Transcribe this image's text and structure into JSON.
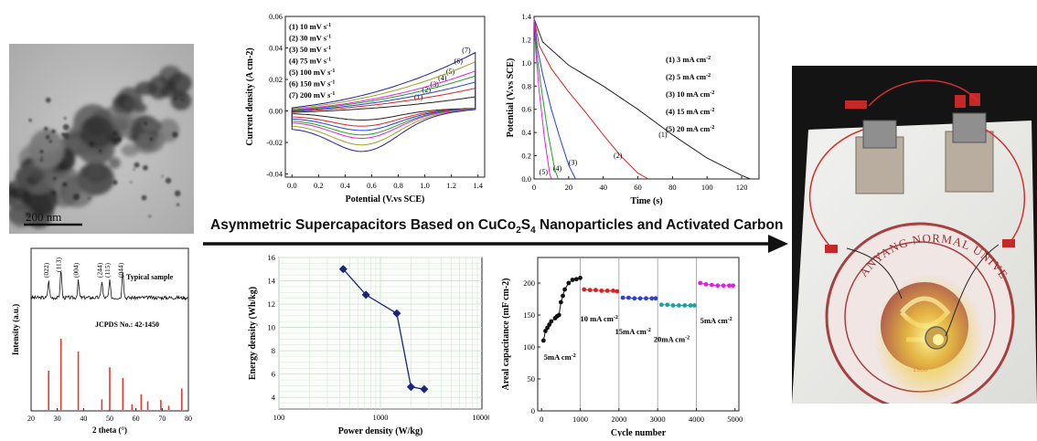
{
  "banner": {
    "title_prefix": "Asymmetric Supercapacitors Based on CuCo",
    "sub1": "2",
    "mid": "S",
    "sub2": "4",
    "title_suffix": " Nanoparticles and Activated Carbon"
  },
  "tem": {
    "scale_label": "200 nm"
  },
  "photo": {
    "seal_text": "ANYANG NORMAL UNIVERSITY",
    "seal_year": "1908"
  },
  "colors": {
    "arrow": "#111111",
    "grid": "#cfe3cf"
  },
  "chart_data": [
    {
      "id": "xrd",
      "type": "line",
      "xlabel": "2 theta (°)",
      "ylabel": "Intensity (a.u.)",
      "xlim": [
        20,
        80
      ],
      "x_ticks": [
        20,
        30,
        40,
        50,
        60,
        70,
        80
      ],
      "legend": [
        "Typical sample",
        "JCPDS No.: 42-1450"
      ],
      "peaks": [
        {
          "label": "(022)",
          "x": 26.7
        },
        {
          "label": "(113)",
          "x": 31.4
        },
        {
          "label": "(004)",
          "x": 38.0
        },
        {
          "label": "(244)",
          "x": 47.0
        },
        {
          "label": "(115)",
          "x": 50.0
        },
        {
          "label": "(044)",
          "x": 55.0
        }
      ],
      "ref_lines": [
        {
          "x": 26.7,
          "h": 0.55
        },
        {
          "x": 31.4,
          "h": 1.0
        },
        {
          "x": 38.0,
          "h": 0.82
        },
        {
          "x": 47.0,
          "h": 0.15
        },
        {
          "x": 50.0,
          "h": 0.6
        },
        {
          "x": 55.0,
          "h": 0.45
        },
        {
          "x": 58.5,
          "h": 0.08
        },
        {
          "x": 62.0,
          "h": 0.22
        },
        {
          "x": 64.5,
          "h": 0.12
        },
        {
          "x": 69.5,
          "h": 0.14
        },
        {
          "x": 72.5,
          "h": 0.06
        },
        {
          "x": 77.5,
          "h": 0.3
        }
      ]
    },
    {
      "id": "cv",
      "type": "line",
      "xlabel": "Potential (V.vs SCE)",
      "ylabel": "Current density (A cm",
      "ylabel_sup": "-2",
      "ylabel_end": ")",
      "xlim": [
        -0.05,
        1.45
      ],
      "ylim": [
        -0.042,
        0.06
      ],
      "x_ticks": [
        0.0,
        0.2,
        0.4,
        0.6,
        0.8,
        1.0,
        1.2,
        1.4
      ],
      "y_ticks": [
        -0.04,
        -0.02,
        0.0,
        0.02,
        0.04,
        0.06
      ],
      "y_tick_labels": [
        "-0.04",
        "-0.02",
        "0.00",
        "0.02",
        "0.04",
        "0.06"
      ],
      "legend_unit": "s",
      "legend_unit_sup": "-1",
      "series": [
        {
          "name": "(1) 10 mV",
          "tag": "(1)",
          "scale": 0.28,
          "color": "#222222"
        },
        {
          "name": "(2) 30 mV",
          "tag": "(2)",
          "scale": 0.42,
          "color": "#e02020"
        },
        {
          "name": "(3) 50 mV",
          "tag": "(3)",
          "scale": 0.52,
          "color": "#2040e0"
        },
        {
          "name": "(4) 75 mV",
          "tag": "(4)",
          "scale": 0.62,
          "color": "#20a020"
        },
        {
          "name": "(5) 100 mV",
          "tag": "(5)",
          "scale": 0.7,
          "color": "#e020e0"
        },
        {
          "name": "(6) 150 mV",
          "tag": "(6)",
          "scale": 0.85,
          "color": "#a0a020"
        },
        {
          "name": "(7) 200 mV",
          "tag": "(7)",
          "scale": 1.0,
          "color": "#2020a0"
        }
      ]
    },
    {
      "id": "gcd",
      "type": "line",
      "xlabel": "Time (s)",
      "ylabel": "Potential (V.vs SCE)",
      "xlim": [
        0,
        130
      ],
      "ylim": [
        0,
        1.4
      ],
      "x_ticks": [
        0,
        20,
        40,
        60,
        80,
        100,
        120
      ],
      "y_ticks": [
        0.0,
        0.2,
        0.4,
        0.6,
        0.8,
        1.0,
        1.2,
        1.4
      ],
      "y_tick_labels": [
        "0.0",
        "0.2",
        "0.4",
        "0.6",
        "0.8",
        "1.0",
        "1.2",
        "1.4"
      ],
      "legend_unit": "mA cm",
      "legend_unit_sup": "-2",
      "series": [
        {
          "name": "(1) 3",
          "tag": "(1)",
          "color": "#222222",
          "x": [
            0,
            5,
            20,
            40,
            60,
            80,
            100,
            120,
            125
          ],
          "y": [
            1.38,
            1.18,
            0.98,
            0.8,
            0.6,
            0.38,
            0.18,
            0.03,
            0.0
          ]
        },
        {
          "name": "(2) 5",
          "tag": "(2)",
          "color": "#e02020",
          "x": [
            0,
            3,
            10,
            20,
            30,
            40,
            50,
            60,
            66
          ],
          "y": [
            1.38,
            1.15,
            0.95,
            0.75,
            0.57,
            0.38,
            0.2,
            0.05,
            0.0
          ]
        },
        {
          "name": "(3) 10",
          "tag": "(3)",
          "color": "#2040e0",
          "x": [
            0,
            2,
            5,
            10,
            15,
            20,
            24
          ],
          "y": [
            1.38,
            1.12,
            0.9,
            0.6,
            0.35,
            0.12,
            0.0
          ]
        },
        {
          "name": "(4) 15",
          "tag": "(4)",
          "color": "#20a020",
          "x": [
            0,
            1.5,
            4,
            8,
            12,
            14
          ],
          "y": [
            1.38,
            1.1,
            0.8,
            0.4,
            0.08,
            0.0
          ]
        },
        {
          "name": "(5) 20",
          "tag": "(5)",
          "color": "#e020e0",
          "x": [
            0,
            1,
            3,
            6,
            9,
            10
          ],
          "y": [
            1.38,
            1.1,
            0.75,
            0.35,
            0.05,
            0.0
          ]
        }
      ]
    },
    {
      "id": "ragone",
      "type": "line",
      "xlabel": "Power density (W/kg)",
      "ylabel": "Energy density (Wh/kg)",
      "xscale": "log",
      "xlim": [
        100,
        10000
      ],
      "ylim": [
        3,
        16
      ],
      "x_ticks": [
        100,
        1000,
        10000
      ],
      "y_ticks": [
        4,
        6,
        8,
        10,
        12,
        14,
        16
      ],
      "grid": true,
      "color": "#1a237e",
      "x": [
        430,
        720,
        1450,
        2000,
        2700
      ],
      "y": [
        15.0,
        12.8,
        11.2,
        4.9,
        4.7
      ]
    },
    {
      "id": "cycle",
      "type": "scatter",
      "xlabel": "Cycle number",
      "ylabel": "Areal capacitance (mF cm",
      "ylabel_sup": "-2",
      "ylabel_end": ")",
      "xlim": [
        -100,
        5100
      ],
      "ylim": [
        0,
        240
      ],
      "x_ticks": [
        0,
        1000,
        2000,
        3000,
        4000,
        5000
      ],
      "y_ticks": [
        0,
        50,
        100,
        150,
        200
      ],
      "dividers": [
        1000,
        2000,
        3000,
        4000
      ],
      "unit_sup": "-2",
      "segments": [
        {
          "label": "5mA cm",
          "color": "#111111",
          "x": [
            50,
            100,
            150,
            200,
            250,
            350,
            400,
            450,
            500,
            550,
            600,
            700,
            800,
            900,
            1000
          ],
          "y": [
            110,
            125,
            130,
            135,
            140,
            145,
            148,
            150,
            170,
            180,
            190,
            200,
            205,
            206,
            208
          ]
        },
        {
          "label": "10 mA cm",
          "color": "#e02020",
          "x": [
            1100,
            1250,
            1400,
            1550,
            1700,
            1850,
            1950
          ],
          "y": [
            190,
            189,
            189,
            188,
            188,
            188,
            187
          ]
        },
        {
          "label": "15mA cm",
          "color": "#3040d0",
          "x": [
            2100,
            2250,
            2400,
            2550,
            2700,
            2850,
            2950
          ],
          "y": [
            177,
            177,
            176,
            176,
            176,
            176,
            176
          ]
        },
        {
          "label": "20mA cm",
          "color": "#20a0a0",
          "x": [
            3100,
            3250,
            3400,
            3550,
            3700,
            3850,
            3950
          ],
          "y": [
            166,
            166,
            165,
            165,
            165,
            165,
            165
          ]
        },
        {
          "label": "5mA cm",
          "color": "#e020e0",
          "x": [
            4100,
            4250,
            4400,
            4550,
            4700,
            4850,
            4950
          ],
          "y": [
            200,
            198,
            197,
            196,
            196,
            196,
            196
          ]
        }
      ]
    }
  ]
}
